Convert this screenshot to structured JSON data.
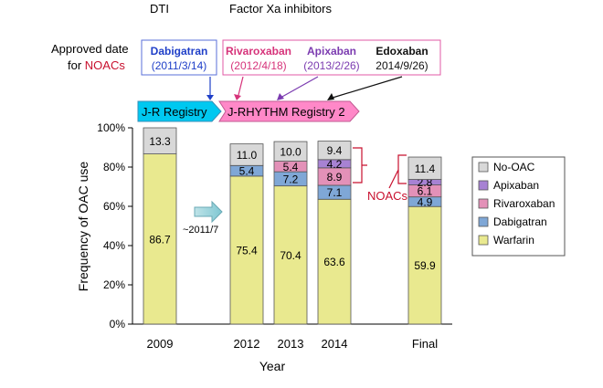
{
  "header": {
    "dti_label": "DTI",
    "fxa_label": "Factor Xa inhibitors",
    "approved_line1": "Approved date",
    "approved_for": "for ",
    "approved_noacs": "NOACs",
    "drugs": [
      {
        "name": "Dabigatran",
        "date": "(2011/3/14)",
        "color": "#1f3fc8"
      },
      {
        "name": "Rivaroxaban",
        "date": "(2012/4/18)",
        "color": "#d6337a"
      },
      {
        "name": "Apixaban",
        "date": "(2013/2/26)",
        "color": "#7b3bb0"
      },
      {
        "name": "Edoxaban",
        "date": "2014/9/26)",
        "color": "#111111"
      }
    ]
  },
  "registries": {
    "jr": "J-R Registry",
    "jrhythm": "J-RHYTHM Registry 2"
  },
  "transition_label": "~2011/7",
  "noacs_bracket_label": "NOACs",
  "chart_data": {
    "type": "bar",
    "stacked": true,
    "percent": true,
    "categories": [
      "2009",
      "2012",
      "2013",
      "2014",
      "Final"
    ],
    "xlabel": "Year",
    "ylabel": "Frequency of OAC use",
    "ylim": [
      0,
      100
    ],
    "yticks": [
      "0%",
      "20%",
      "40%",
      "60%",
      "80%",
      "100%"
    ],
    "legend_position": "right",
    "series": [
      {
        "name": "Warfarin",
        "color": "#e9e98f",
        "values": [
          86.7,
          75.4,
          70.4,
          63.6,
          59.9
        ],
        "labels": [
          "86.7",
          "75.4",
          "70.4",
          "63.6",
          "59.9"
        ]
      },
      {
        "name": "Dabigatran",
        "color": "#7fa7d6",
        "values": [
          0,
          5.4,
          7.2,
          7.1,
          4.9
        ],
        "labels": [
          "",
          "5.4",
          "7.2",
          "7.1",
          "4.9"
        ]
      },
      {
        "name": "Rivaroxaban",
        "color": "#e391b8",
        "values": [
          0,
          0,
          5.4,
          8.9,
          6.1
        ],
        "labels": [
          "",
          "",
          "5.4",
          "8.9",
          "6.1"
        ]
      },
      {
        "name": "Apixaban",
        "color": "#a782d3",
        "values": [
          0,
          0,
          0,
          4.2,
          2.8
        ],
        "labels": [
          "",
          "",
          "",
          "4.2",
          "2.8"
        ]
      },
      {
        "name": "No-OAC",
        "color": "#d8d8d8",
        "values": [
          13.3,
          11.0,
          10.0,
          9.4,
          11.4
        ],
        "labels": [
          "13.3",
          "11.0",
          "10.0",
          "9.4",
          "11.4"
        ]
      }
    ],
    "legend_order": [
      "No-OAC",
      "Apixaban",
      "Rivaroxaban",
      "Dabigatran",
      "Warfarin"
    ]
  }
}
